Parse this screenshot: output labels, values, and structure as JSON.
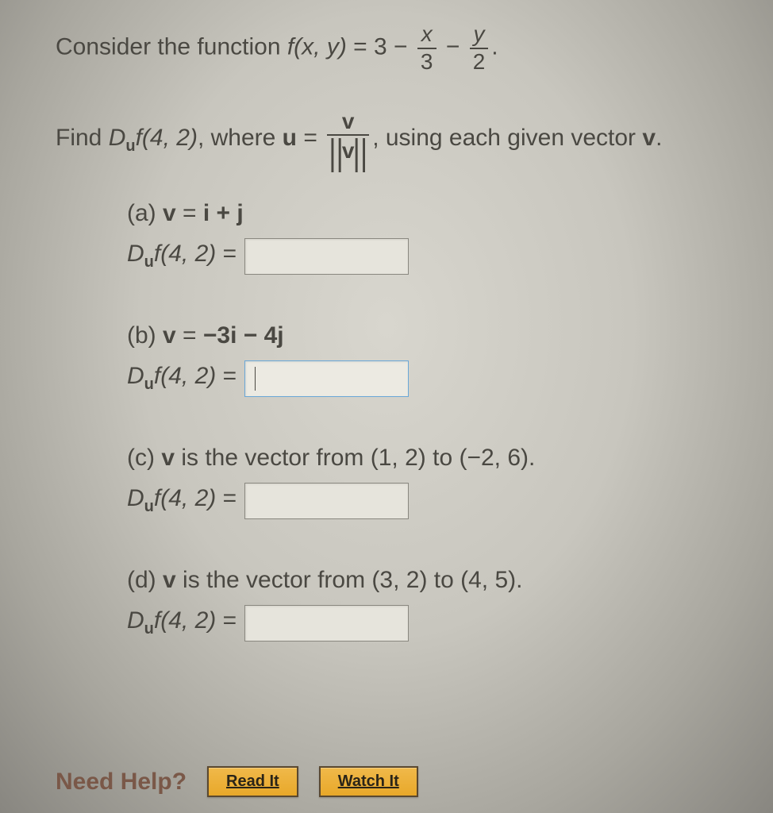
{
  "header": {
    "intro": "Consider the function ",
    "fn_lhs": "f(x, y)",
    "eq": " = 3 − ",
    "frac1_num": "x",
    "frac1_den": "3",
    "minus": " − ",
    "frac2_num": "y",
    "frac2_den": "2",
    "period": "."
  },
  "find": {
    "prefix": "Find ",
    "D": "D",
    "sub_u": "u",
    "f_args": "f(4, 2)",
    "where": ", where ",
    "u_bold": "u",
    "equals": " = ",
    "frac_num": "v",
    "norm_l": "||",
    "norm_v": "v",
    "norm_r": "||",
    "comma": ", ",
    "using": "using each given vector ",
    "v_bold": "v",
    "period": "."
  },
  "parts": {
    "a": {
      "label_prefix": "(a)   ",
      "v": "v",
      "eq": " = ",
      "expr": "i + j"
    },
    "b": {
      "label_prefix": "(b)   ",
      "v": "v",
      "eq": " = ",
      "expr": "−3i − 4j"
    },
    "c": {
      "label_prefix": "(c) ",
      "v": "v",
      "text": " is the vector from (1, 2) to (−2, 6)."
    },
    "d": {
      "label_prefix": "(d) ",
      "v": "v",
      "text": " is the vector from (3, 2) to (4, 5)."
    }
  },
  "answer": {
    "D": "D",
    "sub_u": "u",
    "f_args": "f(4, 2)",
    "equals": " = "
  },
  "help": {
    "label": "Need Help?",
    "read": "Read It",
    "watch": "Watch It"
  },
  "colors": {
    "text": "#4a4842",
    "help_text": "#7a5848",
    "button_bg_top": "#f0b94a",
    "button_bg_bottom": "#e8a82a",
    "button_border": "#5a4830",
    "input_bg": "#e6e4dc",
    "input_border": "#8a8880",
    "input_active_border": "#6aa8d8"
  }
}
